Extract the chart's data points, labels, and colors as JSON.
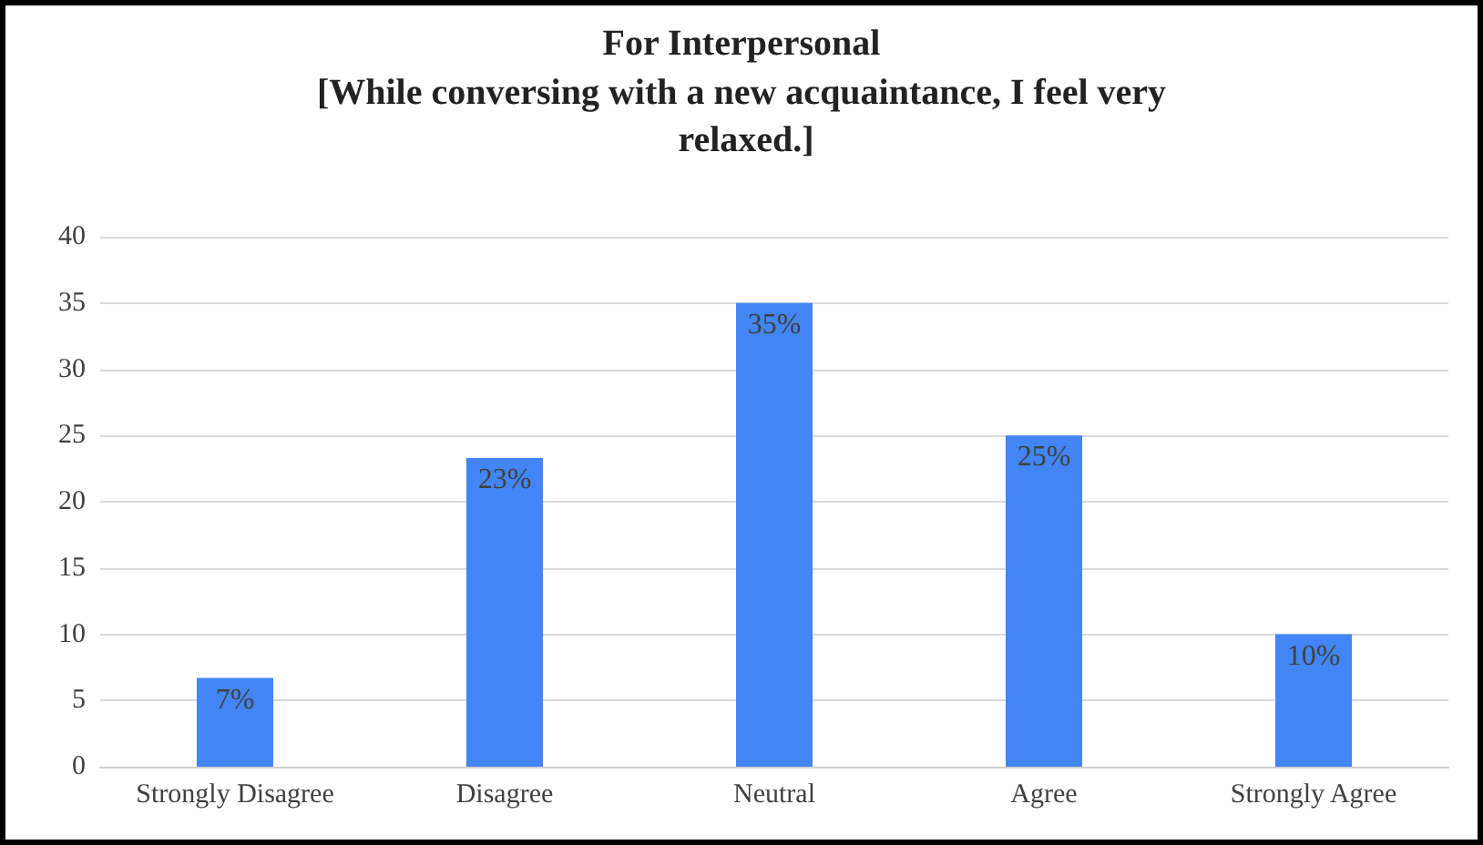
{
  "chart_data": {
    "type": "bar",
    "title": "For Interpersonal",
    "subtitle": "[While conversing with a new acquaintance, I feel very relaxed.]",
    "categories": [
      "Strongly Disagree",
      "Disagree",
      "Neutral",
      "Agree",
      "Strongly Agree"
    ],
    "values": [
      6.7,
      23.3,
      35,
      25,
      10
    ],
    "value_labels": [
      "7%",
      "23%",
      "35%",
      "25%",
      "10%"
    ],
    "color": "#4285f4",
    "ylim": [
      0,
      40
    ],
    "yticks": [
      0,
      5,
      10,
      15,
      20,
      25,
      30,
      35,
      40
    ],
    "grid": "y"
  }
}
